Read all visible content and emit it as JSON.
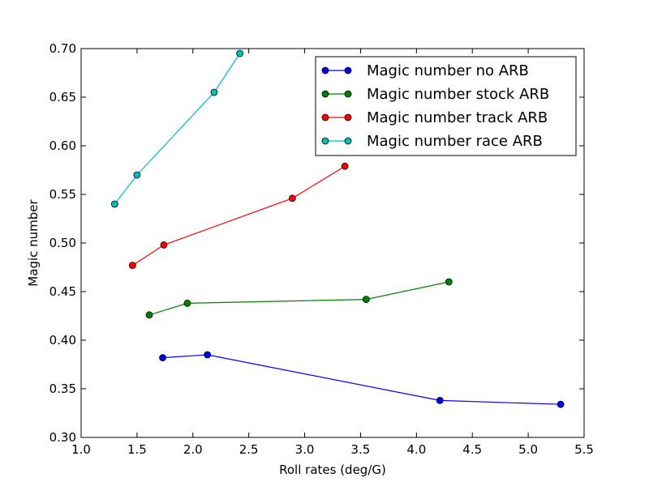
{
  "chart_data": {
    "type": "line",
    "title": "",
    "xlabel": "Roll rates (deg/G)",
    "ylabel": "Magic number",
    "xlim": [
      1.0,
      5.5
    ],
    "ylim": [
      0.3,
      0.7
    ],
    "xticks": [
      "1.0",
      "1.5",
      "2.0",
      "2.5",
      "3.0",
      "3.5",
      "4.0",
      "4.5",
      "5.0",
      "5.5"
    ],
    "yticks": [
      "0.30",
      "0.35",
      "0.40",
      "0.45",
      "0.50",
      "0.55",
      "0.60",
      "0.65",
      "0.70"
    ],
    "grid": false,
    "legend_position": "top-right",
    "series": [
      {
        "name": "Magic number no ARB",
        "color": "#0000ff",
        "x": [
          1.73,
          2.13,
          4.21,
          5.29
        ],
        "y": [
          0.382,
          0.385,
          0.338,
          0.334
        ]
      },
      {
        "name": "Magic number stock ARB",
        "color": "#008000",
        "x": [
          1.61,
          1.95,
          3.55,
          4.29
        ],
        "y": [
          0.426,
          0.438,
          0.442,
          0.46
        ]
      },
      {
        "name": "Magic number track ARB",
        "color": "#ff0000",
        "x": [
          1.46,
          1.74,
          2.89,
          3.36
        ],
        "y": [
          0.477,
          0.498,
          0.546,
          0.579
        ]
      },
      {
        "name": "Magic number race ARB",
        "color": "#00bfbf",
        "x": [
          1.3,
          1.5,
          2.19,
          2.42
        ],
        "y": [
          0.54,
          0.57,
          0.655,
          0.695
        ]
      }
    ]
  }
}
